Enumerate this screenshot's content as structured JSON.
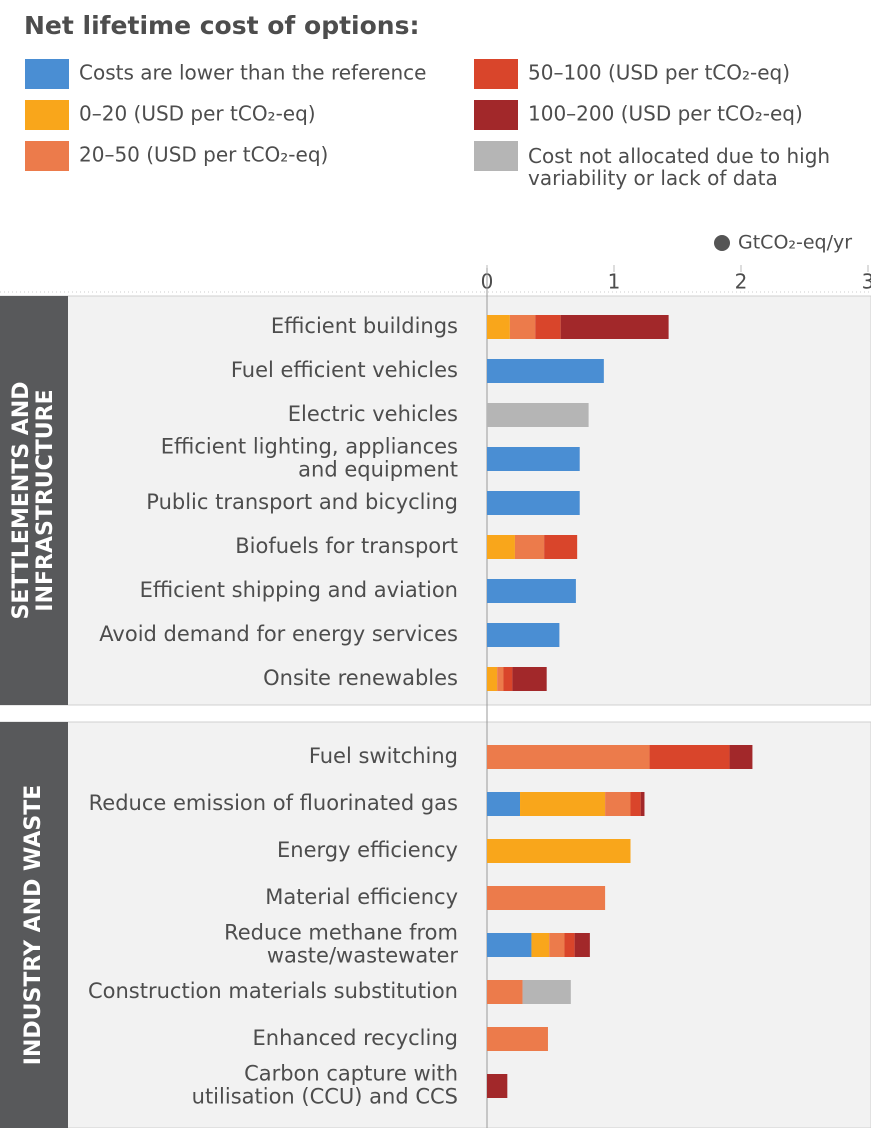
{
  "chart_data": {
    "type": "stacked-barh",
    "title": "Net lifetime cost of options:",
    "unit": "GtCO₂-eq/yr",
    "xlim": [
      0,
      3
    ],
    "xticks": [
      0,
      1,
      2,
      3
    ],
    "series": [
      {
        "name": "Costs are lower than the reference",
        "color": "#4a8ed3"
      },
      {
        "name": "0–20 (USD per tCO₂-eq)",
        "color": "#f9a61b"
      },
      {
        "name": "20–50 (USD per tCO₂-eq)",
        "color": "#ec7b4b"
      },
      {
        "name": "50–100 (USD per tCO₂-eq)",
        "color": "#d9452b"
      },
      {
        "name": "100–200 (USD per tCO₂-eq)",
        "color": "#a2282a"
      },
      {
        "name": "Cost not allocated due to high\nvariability or lack of data",
        "color": "#b5b5b5"
      }
    ],
    "groups": [
      {
        "label": "SETTLEMENTS AND\nINFRASTRUCTURE",
        "categories": [
          "Efficient buildings",
          "Fuel efficient vehicles",
          "Electric vehicles",
          "Efficient lighting, appliances\nand equipment",
          "Public transport and bicycling",
          "Biofuels for transport",
          "Efficient shipping and aviation",
          "Avoid demand for energy services",
          "Onsite renewables"
        ],
        "series": [
          {
            "values": [
              null,
              0.92,
              null,
              0.73,
              0.73,
              null,
              0.7,
              0.57,
              null
            ]
          },
          {
            "values": [
              0.18,
              null,
              null,
              null,
              null,
              0.22,
              null,
              null,
              0.08
            ]
          },
          {
            "values": [
              0.2,
              null,
              null,
              null,
              null,
              0.23,
              null,
              null,
              0.05
            ]
          },
          {
            "values": [
              0.2,
              null,
              null,
              null,
              null,
              0.26,
              null,
              null,
              0.07
            ]
          },
          {
            "values": [
              0.85,
              null,
              null,
              null,
              null,
              null,
              null,
              null,
              0.27
            ]
          },
          {
            "values": [
              null,
              null,
              0.8,
              null,
              null,
              null,
              null,
              null,
              null
            ]
          }
        ]
      },
      {
        "label": "INDUSTRY AND WASTE",
        "categories": [
          "Fuel switching",
          "Reduce emission of fluorinated gas",
          "Energy efficiency",
          "Material efficiency",
          "Reduce methane from\nwaste/wastewater",
          "Construction materials substitution",
          "Enhanced recycling",
          "Carbon capture with\nutilisation (CCU) and CCS"
        ],
        "series": [
          {
            "values": [
              null,
              0.26,
              null,
              null,
              0.35,
              null,
              null,
              null
            ]
          },
          {
            "values": [
              null,
              0.67,
              1.13,
              null,
              0.14,
              null,
              null,
              null
            ]
          },
          {
            "values": [
              1.28,
              0.2,
              null,
              0.93,
              0.12,
              0.28,
              0.48,
              null
            ]
          },
          {
            "values": [
              0.63,
              0.08,
              null,
              null,
              0.08,
              null,
              null,
              null
            ]
          },
          {
            "values": [
              0.18,
              0.03,
              null,
              null,
              0.12,
              null,
              null,
              0.16
            ]
          },
          {
            "values": [
              null,
              null,
              null,
              null,
              null,
              0.38,
              null,
              null
            ]
          }
        ]
      }
    ]
  }
}
